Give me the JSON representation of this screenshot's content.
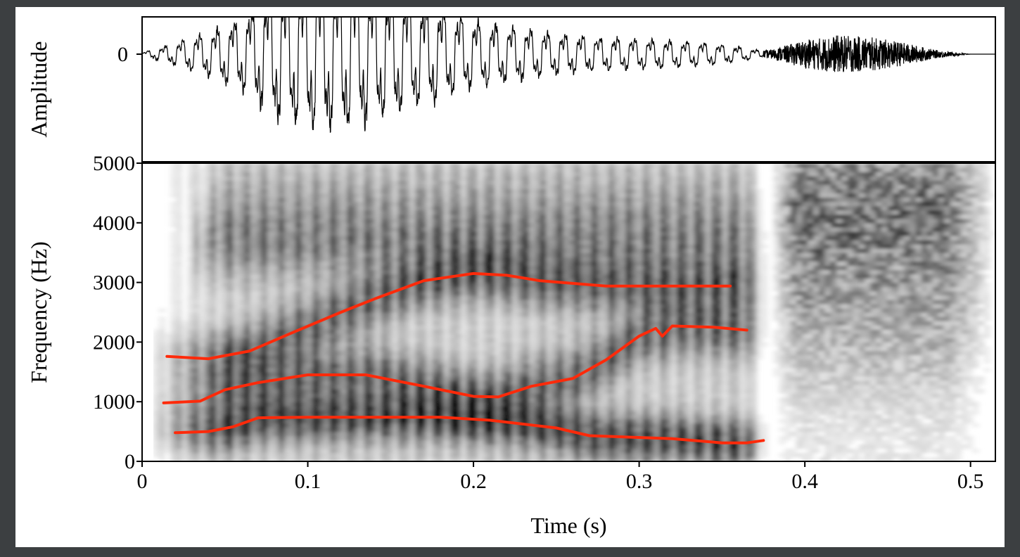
{
  "chart_data": [
    {
      "type": "line",
      "panel": "waveform",
      "ylabel": "Amplitude",
      "xlim": [
        0,
        0.515
      ],
      "ylim": [
        -5000,
        5000
      ],
      "y_ticks": [
        {
          "value": 0,
          "label": "0"
        }
      ],
      "series": [
        {
          "name": "waveform",
          "envelope_x": [
            0,
            0.02,
            0.04,
            0.06,
            0.08,
            0.1,
            0.12,
            0.14,
            0.16,
            0.18,
            0.2,
            0.22,
            0.24,
            0.26,
            0.28,
            0.3,
            0.32,
            0.34,
            0.36,
            0.375,
            0.38,
            0.4,
            0.42,
            0.44,
            0.46,
            0.48,
            0.5,
            0.515
          ],
          "envelope_amp": [
            0.02,
            0.15,
            0.3,
            0.48,
            0.85,
            1.0,
            1.0,
            0.9,
            0.75,
            0.6,
            0.45,
            0.38,
            0.3,
            0.25,
            0.22,
            0.2,
            0.18,
            0.15,
            0.1,
            0.04,
            0.05,
            0.15,
            0.2,
            0.18,
            0.12,
            0.04,
            0.0,
            0.0
          ],
          "noise_segment_x": [
            0.375,
            0.5
          ]
        }
      ]
    },
    {
      "type": "heatmap",
      "panel": "spectrogram",
      "xlabel": "Time (s)",
      "ylabel": "Frequency (Hz)",
      "xlim": [
        0,
        0.515
      ],
      "ylim": [
        0,
        5000
      ],
      "x_ticks": [
        {
          "value": 0,
          "label": "0"
        },
        {
          "value": 0.1,
          "label": "0.1"
        },
        {
          "value": 0.2,
          "label": "0.2"
        },
        {
          "value": 0.3,
          "label": "0.3"
        },
        {
          "value": 0.4,
          "label": "0.4"
        },
        {
          "value": 0.5,
          "label": "0.5"
        }
      ],
      "y_ticks": [
        {
          "value": 0,
          "label": "0"
        },
        {
          "value": 1000,
          "label": "1000"
        },
        {
          "value": 2000,
          "label": "2000"
        },
        {
          "value": 3000,
          "label": "3000"
        },
        {
          "value": 4000,
          "label": "4000"
        },
        {
          "value": 5000,
          "label": "5000"
        }
      ],
      "colormap": "grayscale",
      "formant_color": "#ff2a0a",
      "formants": [
        {
          "name": "F1",
          "points": [
            [
              0.02,
              480
            ],
            [
              0.04,
              500
            ],
            [
              0.055,
              580
            ],
            [
              0.07,
              730
            ],
            [
              0.1,
              740
            ],
            [
              0.18,
              740
            ],
            [
              0.21,
              690
            ],
            [
              0.25,
              560
            ],
            [
              0.27,
              430
            ],
            [
              0.32,
              380
            ],
            [
              0.35,
              310
            ],
            [
              0.365,
              310
            ],
            [
              0.375,
              350
            ]
          ]
        },
        {
          "name": "F2",
          "points": [
            [
              0.013,
              980
            ],
            [
              0.035,
              1010
            ],
            [
              0.05,
              1200
            ],
            [
              0.07,
              1320
            ],
            [
              0.1,
              1450
            ],
            [
              0.135,
              1450
            ],
            [
              0.17,
              1260
            ],
            [
              0.2,
              1090
            ],
            [
              0.215,
              1080
            ],
            [
              0.235,
              1260
            ],
            [
              0.26,
              1390
            ],
            [
              0.28,
              1700
            ],
            [
              0.3,
              2100
            ],
            [
              0.31,
              2230
            ],
            [
              0.314,
              2100
            ],
            [
              0.32,
              2270
            ],
            [
              0.345,
              2250
            ],
            [
              0.365,
              2200
            ]
          ]
        },
        {
          "name": "F3",
          "points": [
            [
              0.015,
              1760
            ],
            [
              0.04,
              1720
            ],
            [
              0.065,
              1850
            ],
            [
              0.09,
              2150
            ],
            [
              0.12,
              2500
            ],
            [
              0.14,
              2720
            ],
            [
              0.17,
              3030
            ],
            [
              0.2,
              3150
            ],
            [
              0.22,
              3120
            ],
            [
              0.24,
              3030
            ],
            [
              0.28,
              2940
            ],
            [
              0.355,
              2940
            ]
          ]
        }
      ]
    }
  ]
}
